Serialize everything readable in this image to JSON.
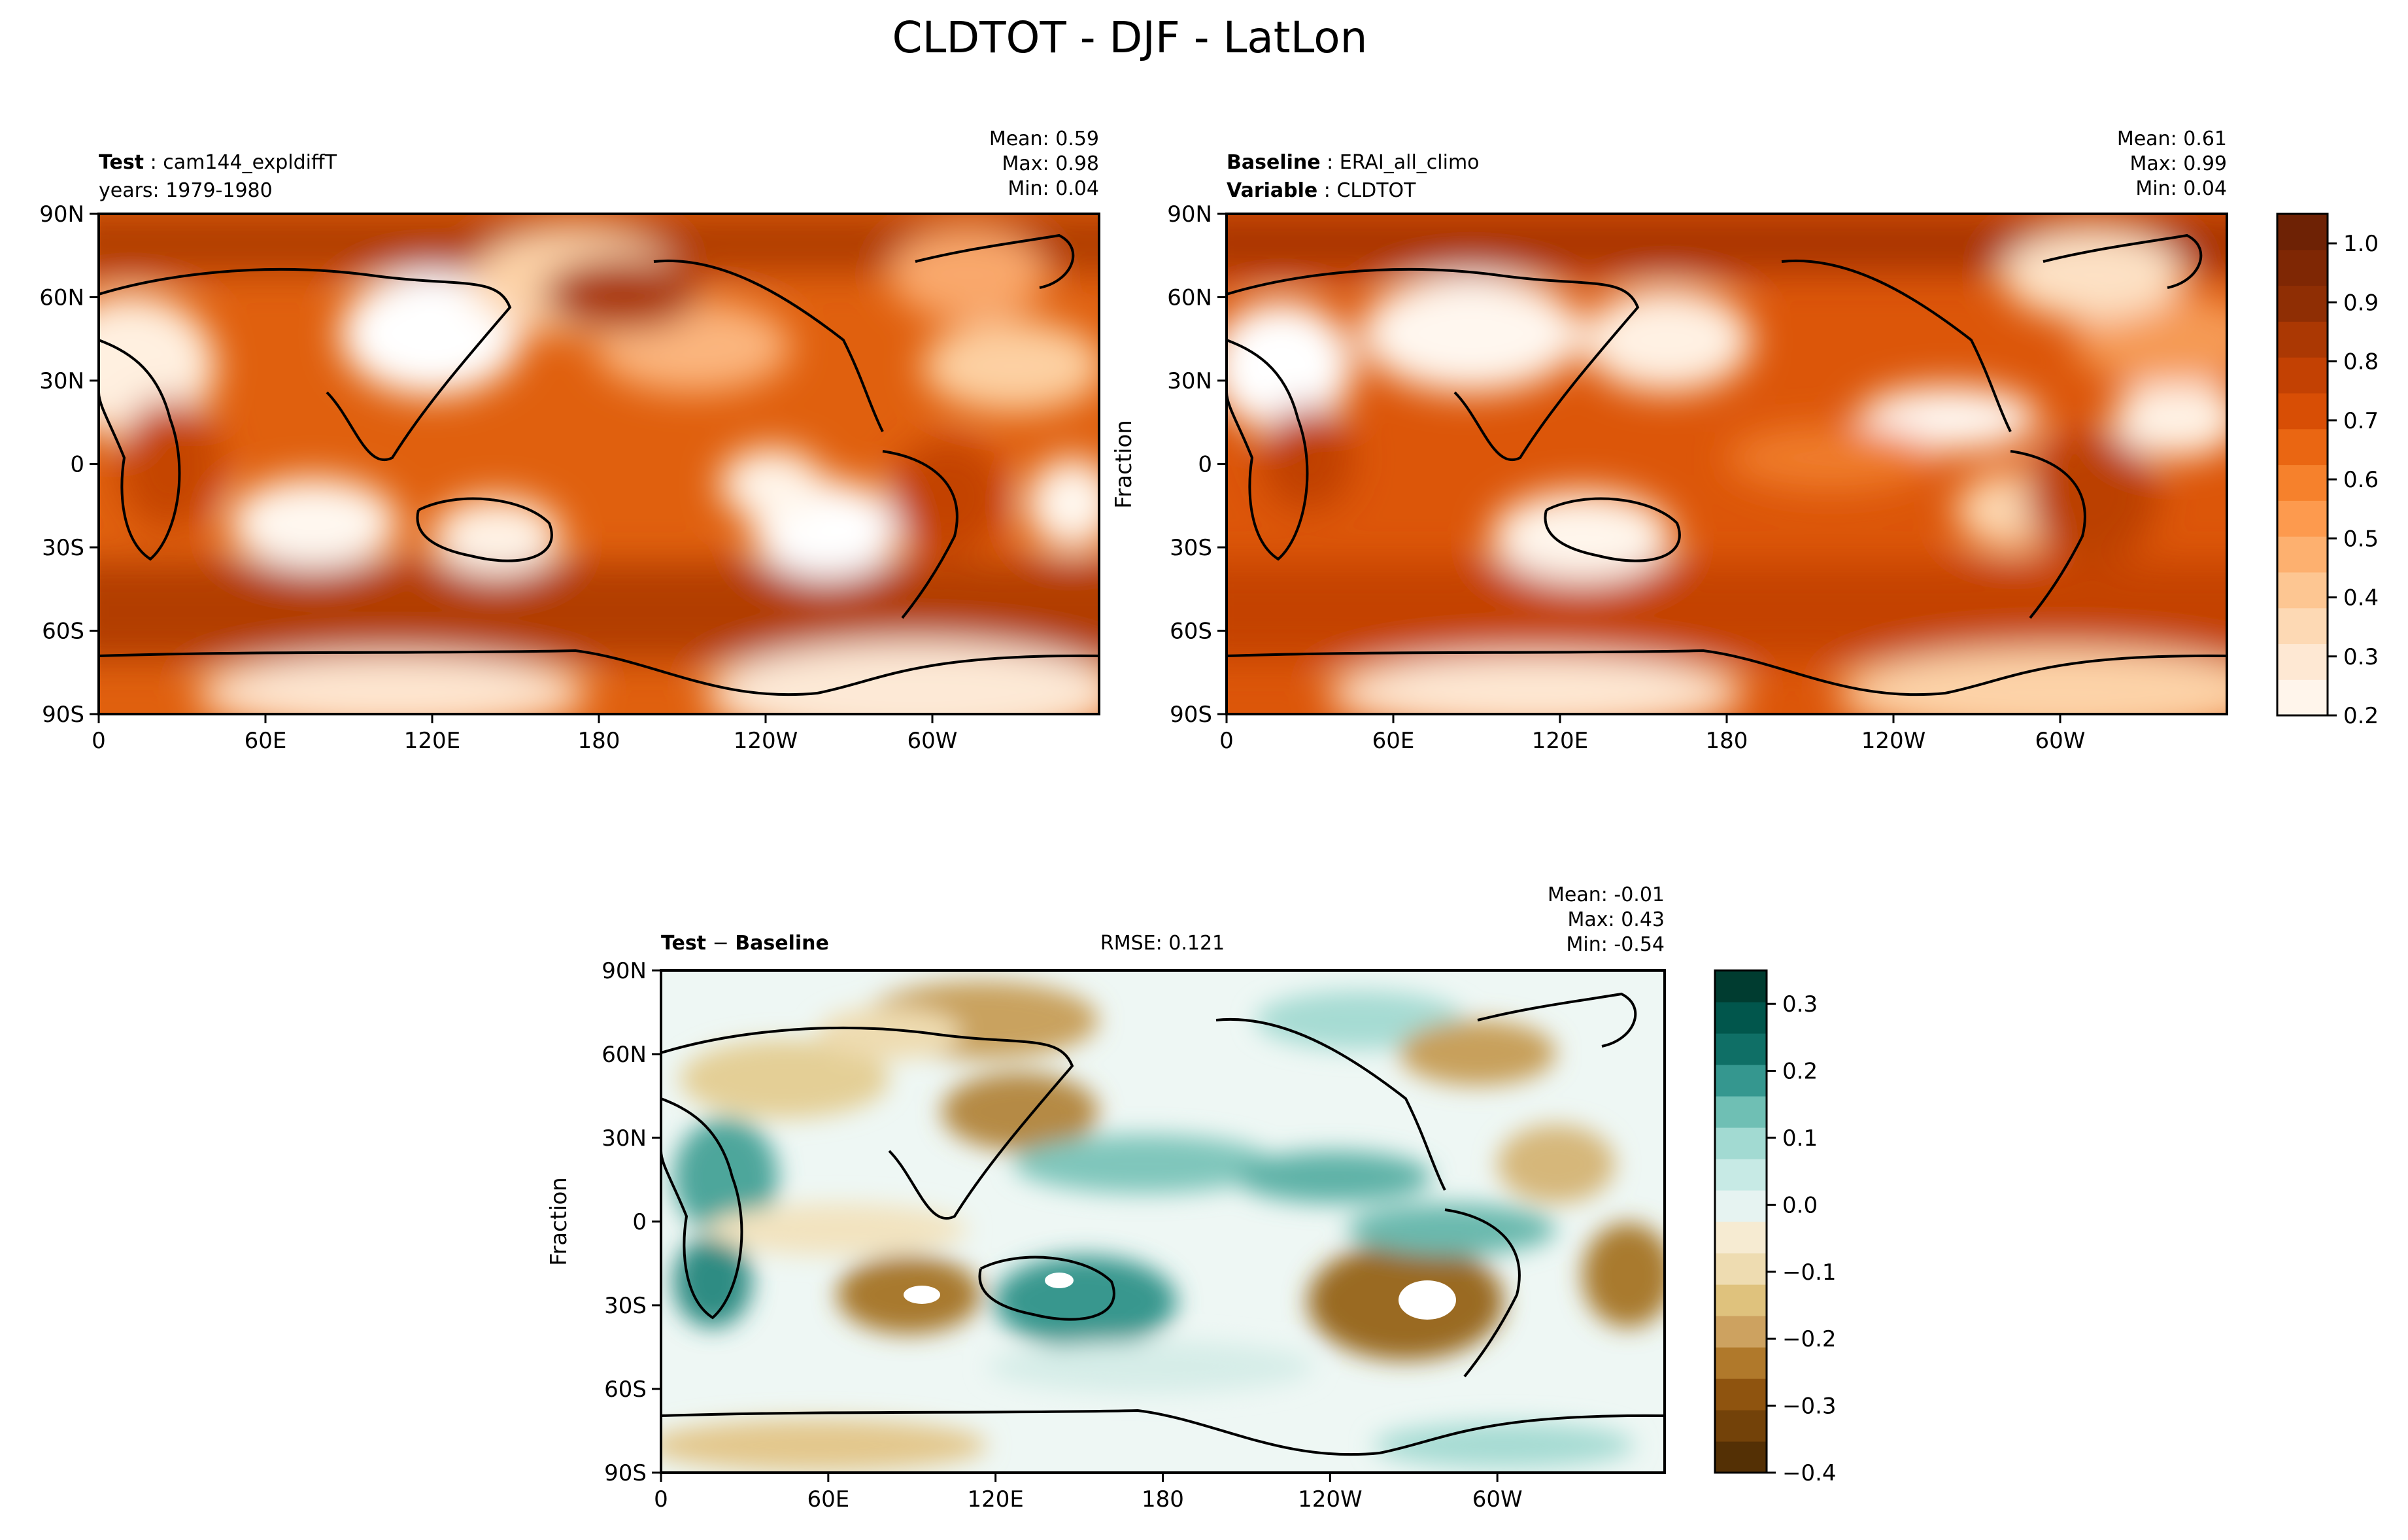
{
  "figure": {
    "title": "CLDTOT - DJF - LatLon"
  },
  "panels": {
    "test": {
      "label_key": "Test",
      "label_value": "cam144_expldiffT",
      "line2_text": "years: 1979-1980",
      "stats": [
        "Mean:  0.59",
        "Max:  0.98",
        "Min:  0.04"
      ],
      "ylabel": ""
    },
    "baseline": {
      "label_key": "Baseline",
      "label_value": "ERAI_all_climo",
      "line2_key": "Variable",
      "line2_value": "CLDTOT",
      "stats": [
        "Mean:  0.61",
        "Max:  0.99",
        "Min:  0.04"
      ],
      "ylabel": "Fraction"
    },
    "diff": {
      "label_key": "Test",
      "label_op": "−",
      "label_value": "Baseline",
      "rmse_text": "RMSE: 0.121",
      "stats": [
        "Mean: -0.01",
        "Max:  0.43",
        "Min: -0.54"
      ],
      "ylabel": "Fraction"
    }
  },
  "axes": {
    "lat_ticks": [
      "90N",
      "60N",
      "30N",
      "0",
      "30S",
      "60S",
      "90S"
    ],
    "lon_ticks": [
      "0",
      "60E",
      "120E",
      "180",
      "120W",
      "60W"
    ]
  },
  "colorbars": {
    "main": {
      "ticks": [
        "0.2",
        "0.3",
        "0.4",
        "0.5",
        "0.6",
        "0.7",
        "0.8",
        "0.9",
        "1.0"
      ],
      "range": [
        0.2,
        1.05
      ],
      "colors": [
        "#fff5eb",
        "#fee8d3",
        "#fdd9b4",
        "#fdc692",
        "#fdb06f",
        "#fd9a4e",
        "#f6812c",
        "#ea6612",
        "#d84e05",
        "#c34103",
        "#ab3803",
        "#8f2e04",
        "#7f2704",
        "#6e2205"
      ]
    },
    "diff": {
      "ticks": [
        "0.3",
        "0.2",
        "0.1",
        "0.0",
        "−0.1",
        "−0.2",
        "−0.3",
        "−0.4"
      ],
      "range": [
        -0.4,
        0.35
      ],
      "colors": [
        "#543005",
        "#734209",
        "#8f540f",
        "#b0792b",
        "#cda260",
        "#dfc27d",
        "#eedcb1",
        "#f6ebd2",
        "#e6f3f1",
        "#c7eae5",
        "#a2dad2",
        "#6fbfb4",
        "#35978f",
        "#0f6f66",
        "#01564c",
        "#003c30"
      ]
    }
  },
  "chart_data": [
    {
      "type": "heatmap",
      "subtype": "filled-contour map",
      "panel": "test",
      "x_axis": "longitude",
      "y_axis": "latitude",
      "xlim": [
        0,
        360
      ],
      "ylim": [
        -90,
        90
      ],
      "x_ticks": [
        "0",
        "60E",
        "120E",
        "180",
        "120W",
        "60W"
      ],
      "y_ticks": [
        "90N",
        "60N",
        "30N",
        "0",
        "30S",
        "60S",
        "90S"
      ],
      "value_range": [
        0.04,
        0.98
      ],
      "mean": 0.59,
      "colorbar": "main"
    },
    {
      "type": "heatmap",
      "subtype": "filled-contour map",
      "panel": "baseline",
      "x_axis": "longitude",
      "y_axis": "latitude",
      "xlim": [
        0,
        360
      ],
      "ylim": [
        -90,
        90
      ],
      "x_ticks": [
        "0",
        "60E",
        "120E",
        "180",
        "120W",
        "60W"
      ],
      "y_ticks": [
        "90N",
        "60N",
        "30N",
        "0",
        "30S",
        "60S",
        "90S"
      ],
      "value_range": [
        0.04,
        0.99
      ],
      "mean": 0.61,
      "colorbar": "main"
    },
    {
      "type": "heatmap",
      "subtype": "filled-contour map",
      "panel": "diff",
      "x_axis": "longitude",
      "y_axis": "latitude",
      "xlim": [
        0,
        360
      ],
      "ylim": [
        -90,
        90
      ],
      "x_ticks": [
        "0",
        "60E",
        "120E",
        "180",
        "120W",
        "60W"
      ],
      "y_ticks": [
        "90N",
        "60N",
        "30N",
        "0",
        "30S",
        "60S",
        "90S"
      ],
      "value_range": [
        -0.54,
        0.43
      ],
      "mean": -0.01,
      "rmse": 0.121,
      "colorbar": "diff"
    }
  ]
}
